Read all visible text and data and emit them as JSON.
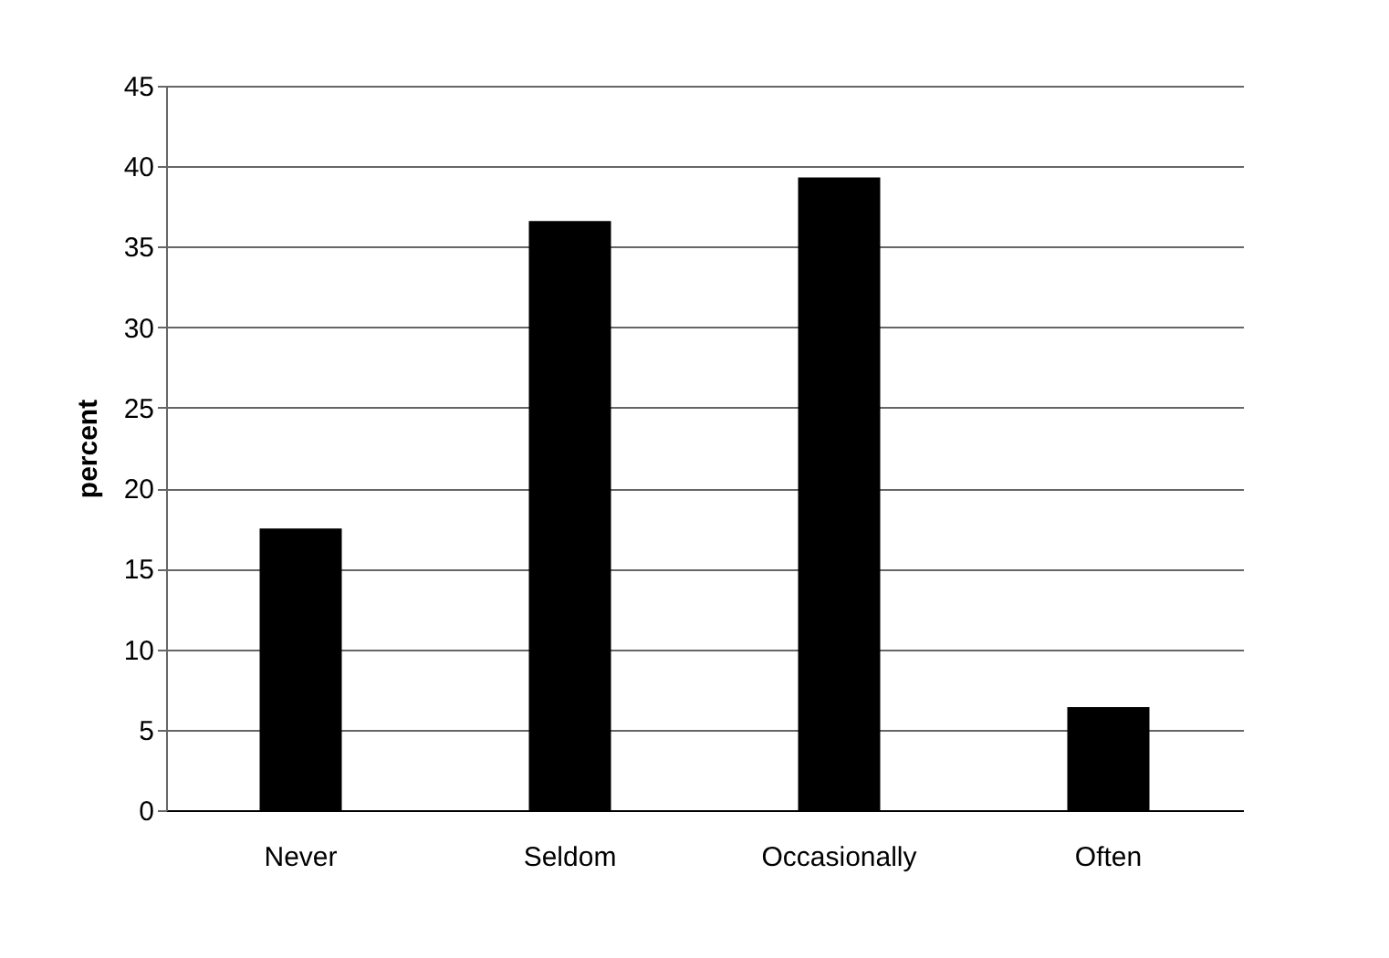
{
  "chart_data": {
    "type": "bar",
    "ylabel": "percent",
    "categories": [
      "Never",
      "Seldom",
      "Occasionally",
      "Often"
    ],
    "values": [
      17.5,
      36.6,
      39.3,
      6.4
    ],
    "color": "#000000",
    "ylim": [
      0,
      45
    ],
    "yticks": [
      0,
      5,
      10,
      15,
      20,
      25,
      30,
      35,
      40,
      45
    ],
    "grid": "y"
  }
}
